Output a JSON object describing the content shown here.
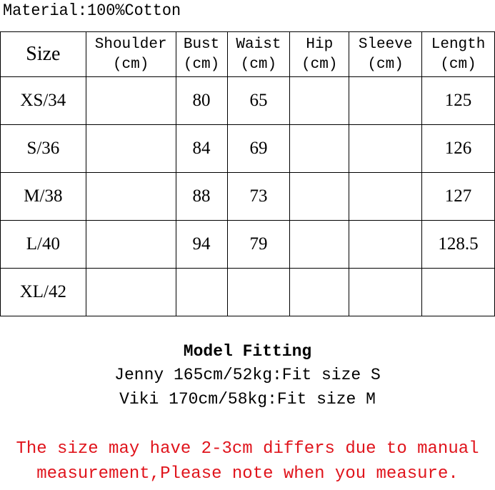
{
  "material": "Material:100%Cotton",
  "table": {
    "headers": [
      {
        "line1": "Size",
        "line2": ""
      },
      {
        "line1": "Shoulder",
        "line2": "(cm)"
      },
      {
        "line1": "Bust",
        "line2": "(cm)"
      },
      {
        "line1": "Waist",
        "line2": "(cm)"
      },
      {
        "line1": "Hip",
        "line2": "(cm)"
      },
      {
        "line1": "Sleeve",
        "line2": "(cm)"
      },
      {
        "line1": "Length",
        "line2": "(cm)"
      }
    ],
    "rows": [
      [
        "XS/34",
        "",
        "80",
        "65",
        "",
        "",
        "125"
      ],
      [
        "S/36",
        "",
        "84",
        "69",
        "",
        "",
        "126"
      ],
      [
        "M/38",
        "",
        "88",
        "73",
        "",
        "",
        "127"
      ],
      [
        "L/40",
        "",
        "94",
        "79",
        "",
        "",
        "128.5"
      ],
      [
        "XL/42",
        "",
        "",
        "",
        "",
        "",
        ""
      ]
    ]
  },
  "model_fitting": {
    "title": "Model Fitting",
    "lines": [
      "Jenny 165cm/52kg:Fit size S",
      "Viki 170cm/58kg:Fit size M"
    ]
  },
  "note": {
    "lines": [
      "The size may have 2-3cm differs due to manual",
      "measurement,Please note when you measure."
    ],
    "color": "#e0141c"
  }
}
